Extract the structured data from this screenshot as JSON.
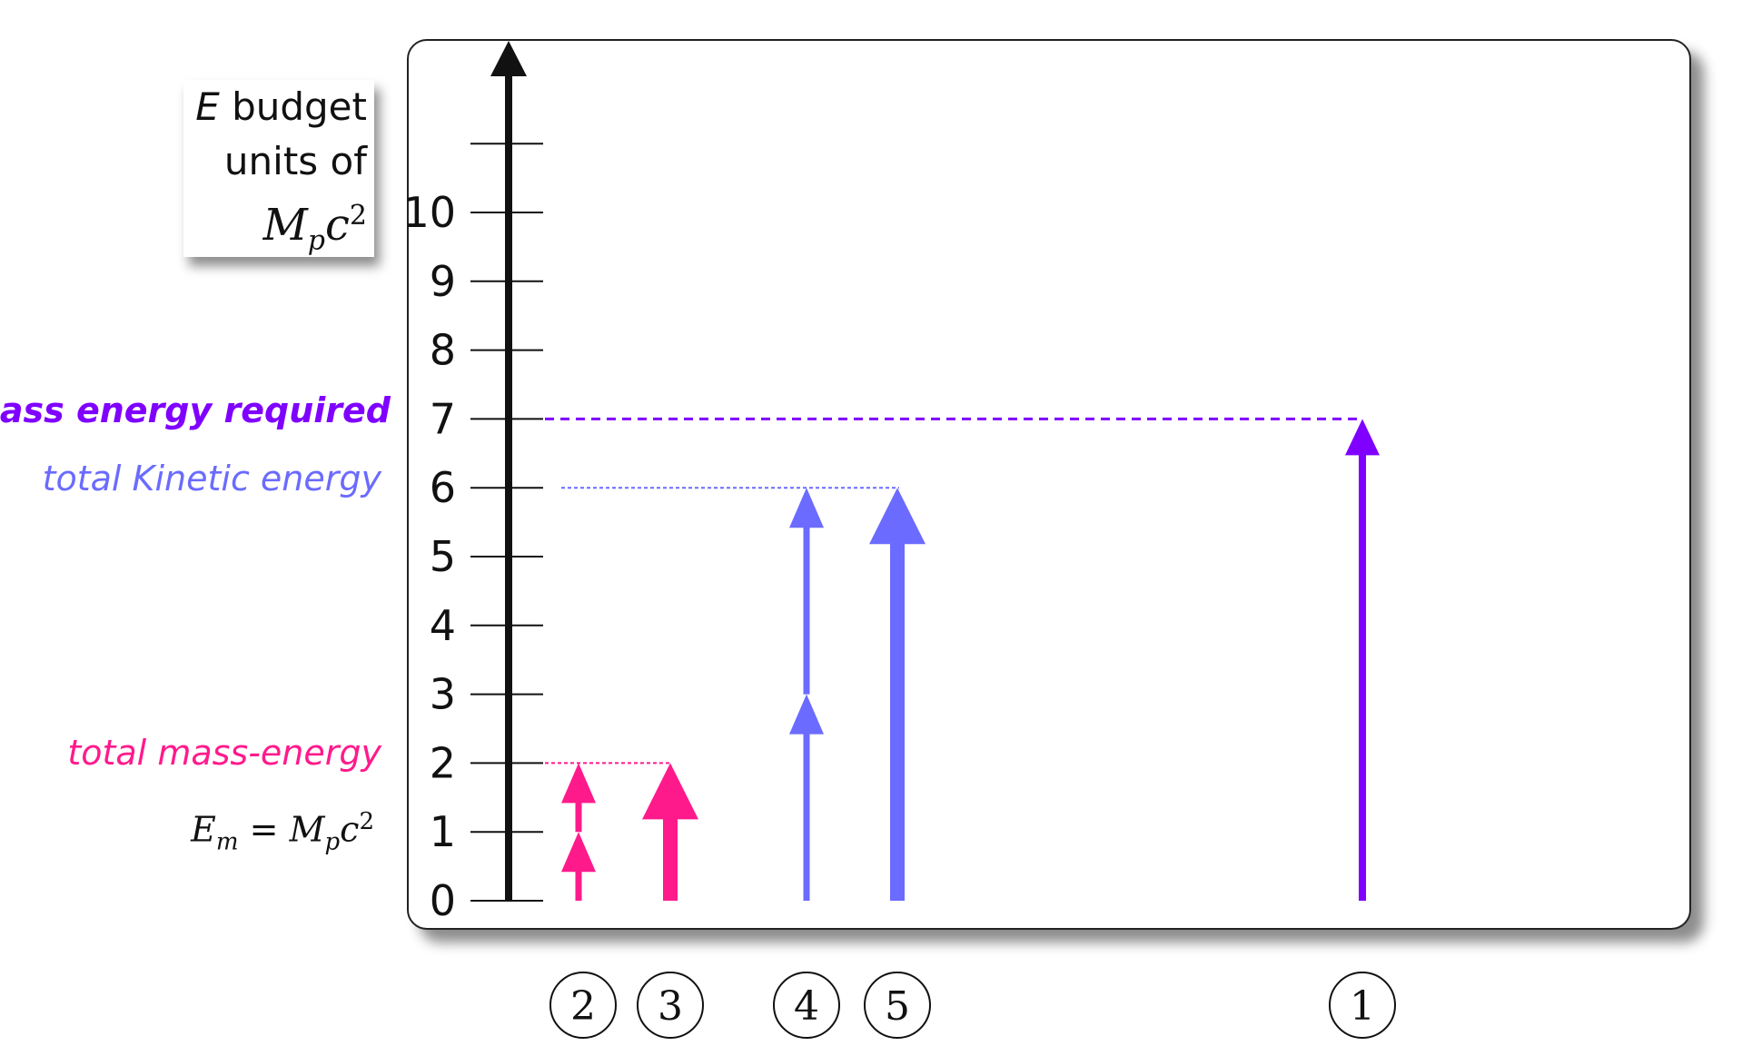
{
  "axis_label": {
    "line1_var": "E",
    "line1_text": " budget",
    "line2": "units of",
    "line3_M": "M",
    "line3_sub": "p",
    "line3_c": "c",
    "line3_sup": "2"
  },
  "y_ticks": [
    "0",
    "1",
    "2",
    "3",
    "4",
    "5",
    "6",
    "7",
    "8",
    "9",
    "10"
  ],
  "side_labels": {
    "mass_energy_required": "mass energy required",
    "total_kinetic_energy": "total Kinetic energy",
    "total_mass_energy": "total mass-energy"
  },
  "em_label": {
    "E": "E",
    "E_sub": "m",
    "eq": " = ",
    "M": "M",
    "M_sub": "p",
    "c": "c",
    "c_sup": "2"
  },
  "cases": [
    {
      "id": "2",
      "circle": "2",
      "color": "#ff1a8c",
      "segments": [
        [
          0,
          1
        ],
        [
          1,
          2
        ]
      ],
      "style": "thin"
    },
    {
      "id": "3",
      "circle": "3",
      "color": "#ff1a8c",
      "segments": [
        [
          0,
          2
        ]
      ],
      "style": "thick"
    },
    {
      "id": "4",
      "circle": "4",
      "color": "#6b6bff",
      "segments": [
        [
          0,
          3
        ],
        [
          3,
          6
        ]
      ],
      "style": "thin"
    },
    {
      "id": "5",
      "circle": "5",
      "color": "#6b6bff",
      "segments": [
        [
          0,
          6
        ]
      ],
      "style": "thick"
    },
    {
      "id": "1",
      "circle": "1",
      "color": "#7f00ff",
      "segments": [
        [
          0,
          7
        ]
      ],
      "style": "medium"
    }
  ],
  "reference_lines": [
    {
      "name": "mass-energy-required-line",
      "value": 7,
      "color": "#7f00ff"
    },
    {
      "name": "total-kinetic-energy-line",
      "value": 6,
      "color": "#6b6bff"
    },
    {
      "name": "total-mass-energy-line",
      "value": 2,
      "color": "#ff1a8c"
    }
  ]
}
